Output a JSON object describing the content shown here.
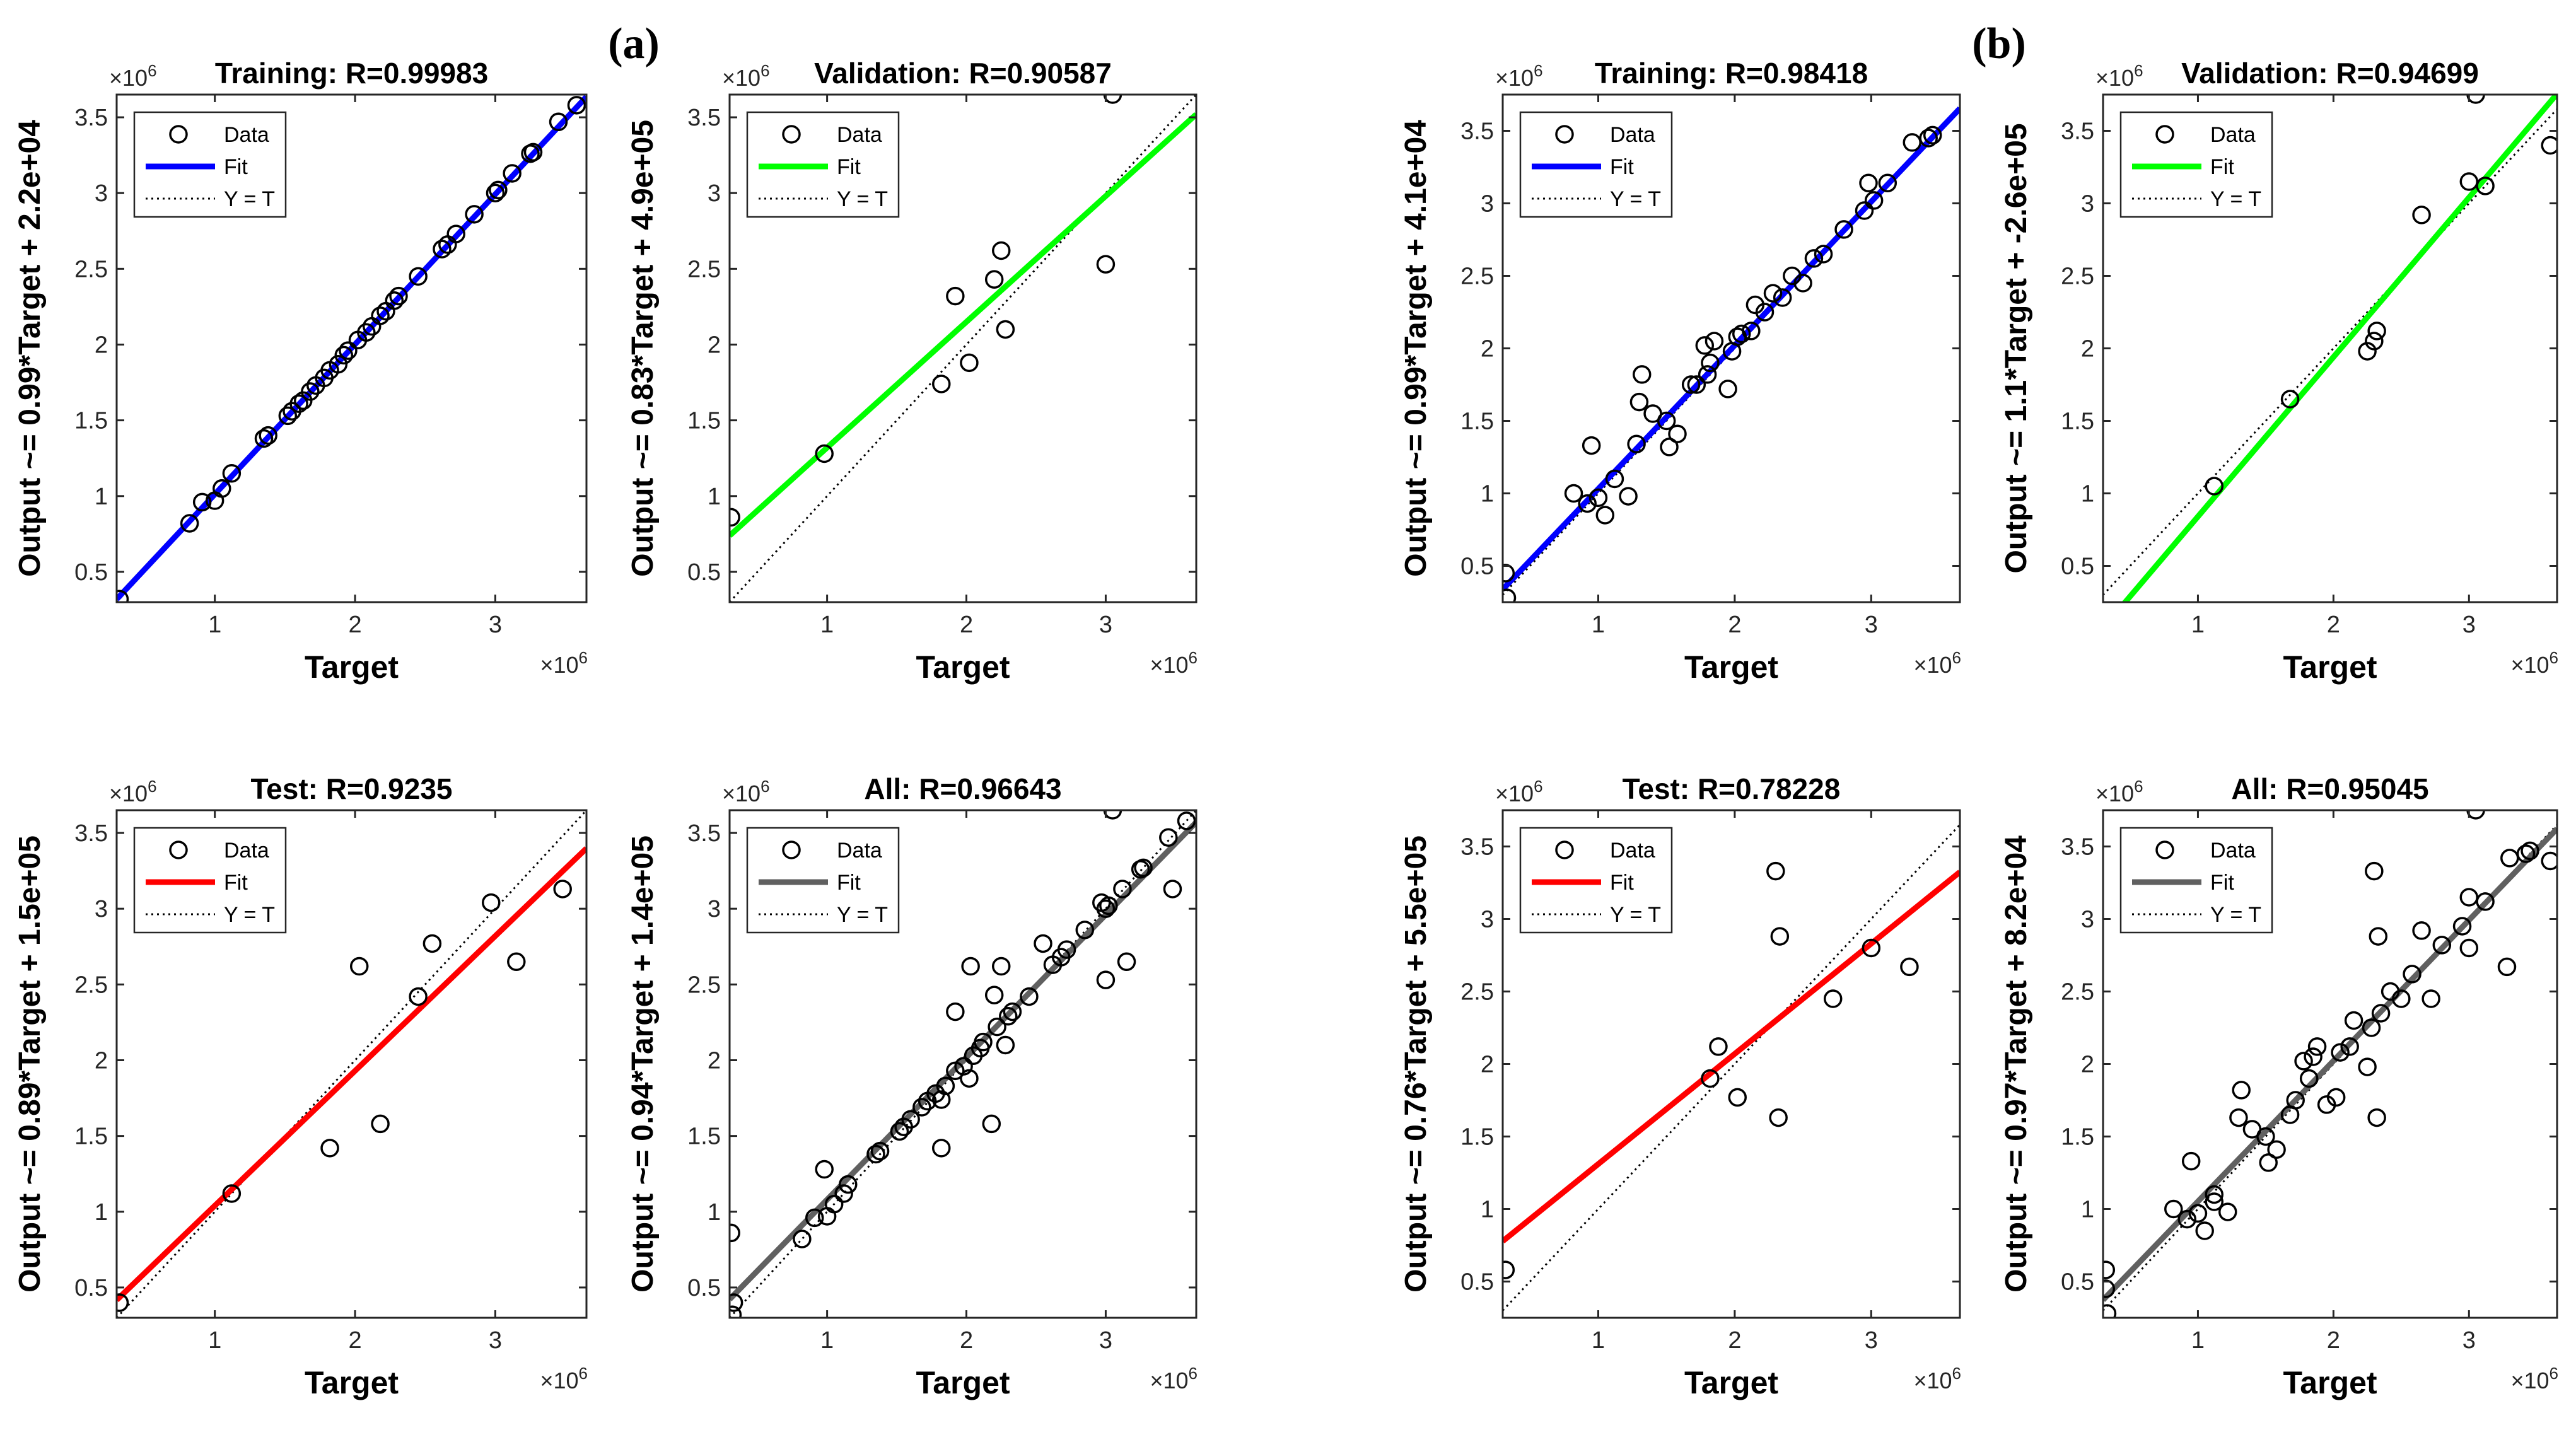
{
  "figure": {
    "groups": [
      {
        "label": "(a)"
      },
      {
        "label": "(b)"
      }
    ]
  },
  "colors": {
    "training": "#0000ff",
    "validation": "#00ff00",
    "test": "#ff0000",
    "all": "#606060",
    "axis": "#262626",
    "ideal": "#000000"
  },
  "chart_data": [
    {
      "type": "scatter",
      "group": "(a)",
      "title": "Training: R=0.99983",
      "xlabel": "Target",
      "ylabel": "Output ~= 0.99*Target + 2.2e+04",
      "exponent": "×10^6",
      "xlim": [
        0.3,
        3.65
      ],
      "ylim": [
        0.3,
        3.65
      ],
      "xticks": [
        "1",
        "2",
        "3"
      ],
      "yticks": [
        "0.5",
        "1",
        "1.5",
        "2",
        "2.5",
        "3",
        "3.5"
      ],
      "fit_color_key": "training",
      "fit": {
        "slope": 0.99,
        "intercept": 0.022
      },
      "legend": [
        "Data",
        "Fit",
        "Y = T"
      ],
      "points": [
        [
          0.32,
          0.32
        ],
        [
          0.82,
          0.82
        ],
        [
          0.91,
          0.96
        ],
        [
          1.0,
          0.97
        ],
        [
          1.05,
          1.05
        ],
        [
          1.12,
          1.15
        ],
        [
          1.35,
          1.38
        ],
        [
          1.38,
          1.4
        ],
        [
          1.52,
          1.53
        ],
        [
          1.55,
          1.56
        ],
        [
          1.6,
          1.61
        ],
        [
          1.63,
          1.63
        ],
        [
          1.68,
          1.69
        ],
        [
          1.72,
          1.73
        ],
        [
          1.78,
          1.78
        ],
        [
          1.82,
          1.83
        ],
        [
          1.88,
          1.87
        ],
        [
          1.92,
          1.93
        ],
        [
          1.95,
          1.96
        ],
        [
          2.02,
          2.03
        ],
        [
          2.08,
          2.08
        ],
        [
          2.12,
          2.12
        ],
        [
          2.18,
          2.19
        ],
        [
          2.22,
          2.22
        ],
        [
          2.28,
          2.29
        ],
        [
          2.31,
          2.32
        ],
        [
          2.45,
          2.45
        ],
        [
          2.62,
          2.63
        ],
        [
          2.66,
          2.66
        ],
        [
          2.72,
          2.73
        ],
        [
          2.85,
          2.86
        ],
        [
          3.0,
          3.0
        ],
        [
          3.02,
          3.02
        ],
        [
          3.12,
          3.13
        ],
        [
          3.25,
          3.26
        ],
        [
          3.27,
          3.27
        ],
        [
          3.45,
          3.47
        ],
        [
          3.58,
          3.58
        ]
      ]
    },
    {
      "type": "scatter",
      "group": "(a)",
      "title": "Validation: R=0.90587",
      "xlabel": "Target",
      "ylabel": "Output ~= 0.83*Target + 4.9e+05",
      "exponent": "×10^6",
      "xlim": [
        0.3,
        3.65
      ],
      "ylim": [
        0.3,
        3.65
      ],
      "xticks": [
        "1",
        "2",
        "3"
      ],
      "yticks": [
        "0.5",
        "1",
        "1.5",
        "2",
        "2.5",
        "3",
        "3.5"
      ],
      "fit_color_key": "validation",
      "fit": {
        "slope": 0.83,
        "intercept": 0.49
      },
      "legend": [
        "Data",
        "Fit",
        "Y = T"
      ],
      "points": [
        [
          0.31,
          0.86
        ],
        [
          0.98,
          1.28
        ],
        [
          1.82,
          1.74
        ],
        [
          1.92,
          2.32
        ],
        [
          2.02,
          1.88
        ],
        [
          2.2,
          2.43
        ],
        [
          2.25,
          2.62
        ],
        [
          2.28,
          2.1
        ],
        [
          3.0,
          2.53
        ],
        [
          3.05,
          3.65
        ]
      ]
    },
    {
      "type": "scatter",
      "group": "(b)",
      "title": "Training: R=0.98418",
      "xlabel": "Target",
      "ylabel": "Output ~= 0.99*Target + 4.1e+04",
      "exponent": "×10^6",
      "xlim": [
        0.3,
        3.65
      ],
      "ylim": [
        0.25,
        3.75
      ],
      "xticks": [
        "1",
        "2",
        "3"
      ],
      "yticks": [
        "0.5",
        "1",
        "1.5",
        "2",
        "2.5",
        "3",
        "3.5"
      ],
      "fit_color_key": "training",
      "fit": {
        "slope": 0.99,
        "intercept": 0.041
      },
      "legend": [
        "Data",
        "Fit",
        "Y = T"
      ],
      "points": [
        [
          0.32,
          0.45
        ],
        [
          0.33,
          0.28
        ],
        [
          0.82,
          1.0
        ],
        [
          0.92,
          0.93
        ],
        [
          0.95,
          1.33
        ],
        [
          1.0,
          0.97
        ],
        [
          1.05,
          0.85
        ],
        [
          1.12,
          1.1
        ],
        [
          1.22,
          0.98
        ],
        [
          1.28,
          1.34
        ],
        [
          1.3,
          1.63
        ],
        [
          1.32,
          1.82
        ],
        [
          1.4,
          1.55
        ],
        [
          1.5,
          1.5
        ],
        [
          1.52,
          1.32
        ],
        [
          1.58,
          1.41
        ],
        [
          1.68,
          1.75
        ],
        [
          1.72,
          1.75
        ],
        [
          1.78,
          2.02
        ],
        [
          1.8,
          1.82
        ],
        [
          1.82,
          1.9
        ],
        [
          1.85,
          2.05
        ],
        [
          1.95,
          1.72
        ],
        [
          1.98,
          1.98
        ],
        [
          2.02,
          2.08
        ],
        [
          2.05,
          2.1
        ],
        [
          2.12,
          2.12
        ],
        [
          2.15,
          2.3
        ],
        [
          2.22,
          2.25
        ],
        [
          2.28,
          2.38
        ],
        [
          2.35,
          2.35
        ],
        [
          2.42,
          2.5
        ],
        [
          2.5,
          2.45
        ],
        [
          2.58,
          2.62
        ],
        [
          2.65,
          2.65
        ],
        [
          2.8,
          2.82
        ],
        [
          2.95,
          2.95
        ],
        [
          2.98,
          3.14
        ],
        [
          3.02,
          3.02
        ],
        [
          3.12,
          3.14
        ],
        [
          3.3,
          3.42
        ],
        [
          3.42,
          3.45
        ],
        [
          3.45,
          3.47
        ]
      ]
    },
    {
      "type": "scatter",
      "group": "(b)",
      "title": "Validation: R=0.94699",
      "xlabel": "Target",
      "ylabel": "Output ~= 1.1*Target + -2.6e+05",
      "exponent": "×10^6",
      "xlim": [
        0.3,
        3.65
      ],
      "ylim": [
        0.25,
        3.75
      ],
      "xticks": [
        "1",
        "2",
        "3"
      ],
      "yticks": [
        "0.5",
        "1",
        "1.5",
        "2",
        "2.5",
        "3",
        "3.5"
      ],
      "fit_color_key": "validation",
      "fit": {
        "slope": 1.1,
        "intercept": -0.26
      },
      "legend": [
        "Data",
        "Fit",
        "Y = T"
      ],
      "points": [
        [
          1.12,
          1.05
        ],
        [
          1.68,
          1.65
        ],
        [
          2.25,
          1.98
        ],
        [
          2.3,
          2.05
        ],
        [
          2.32,
          2.12
        ],
        [
          2.65,
          2.92
        ],
        [
          3.0,
          3.15
        ],
        [
          3.05,
          3.75
        ],
        [
          3.12,
          3.12
        ],
        [
          3.6,
          3.4
        ]
      ]
    },
    {
      "type": "scatter",
      "group": "(a)",
      "title": "Test: R=0.9235",
      "xlabel": "Target",
      "ylabel": "Output ~= 0.89*Target + 1.5e+05",
      "exponent": "×10^6",
      "xlim": [
        0.3,
        3.65
      ],
      "ylim": [
        0.3,
        3.65
      ],
      "xticks": [
        "1",
        "2",
        "3"
      ],
      "yticks": [
        "0.5",
        "1",
        "1.5",
        "2",
        "2.5",
        "3",
        "3.5"
      ],
      "fit_color_key": "test",
      "fit": {
        "slope": 0.89,
        "intercept": 0.15
      },
      "legend": [
        "Data",
        "Fit",
        "Y = T"
      ],
      "points": [
        [
          0.32,
          0.4
        ],
        [
          1.12,
          1.12
        ],
        [
          1.82,
          1.42
        ],
        [
          2.03,
          2.62
        ],
        [
          2.18,
          1.58
        ],
        [
          2.45,
          2.42
        ],
        [
          2.55,
          2.77
        ],
        [
          2.97,
          3.04
        ],
        [
          3.15,
          2.65
        ],
        [
          3.48,
          3.13
        ]
      ]
    },
    {
      "type": "scatter",
      "group": "(a)",
      "title": "All: R=0.96643",
      "xlabel": "Target",
      "ylabel": "Output ~= 0.94*Target + 1.4e+05",
      "exponent": "×10^6",
      "xlim": [
        0.3,
        3.65
      ],
      "ylim": [
        0.3,
        3.65
      ],
      "xticks": [
        "1",
        "2",
        "3"
      ],
      "yticks": [
        "0.5",
        "1",
        "1.5",
        "2",
        "2.5",
        "3",
        "3.5"
      ],
      "fit_color_key": "all",
      "fit": {
        "slope": 0.94,
        "intercept": 0.14
      },
      "legend": [
        "Data",
        "Fit",
        "Y = T"
      ],
      "points": [
        [
          0.31,
          0.86
        ],
        [
          0.32,
          0.32
        ],
        [
          0.33,
          0.4
        ],
        [
          0.82,
          0.82
        ],
        [
          0.91,
          0.96
        ],
        [
          0.98,
          1.28
        ],
        [
          1.0,
          0.97
        ],
        [
          1.05,
          1.05
        ],
        [
          1.12,
          1.12
        ],
        [
          1.15,
          1.18
        ],
        [
          1.35,
          1.38
        ],
        [
          1.38,
          1.4
        ],
        [
          1.52,
          1.53
        ],
        [
          1.55,
          1.56
        ],
        [
          1.6,
          1.61
        ],
        [
          1.68,
          1.69
        ],
        [
          1.72,
          1.73
        ],
        [
          1.78,
          1.78
        ],
        [
          1.82,
          1.42
        ],
        [
          1.82,
          1.74
        ],
        [
          1.85,
          1.83
        ],
        [
          1.92,
          2.32
        ],
        [
          1.92,
          1.93
        ],
        [
          1.98,
          1.96
        ],
        [
          2.02,
          1.88
        ],
        [
          2.03,
          2.62
        ],
        [
          2.05,
          2.03
        ],
        [
          2.1,
          2.08
        ],
        [
          2.12,
          2.12
        ],
        [
          2.18,
          1.58
        ],
        [
          2.2,
          2.43
        ],
        [
          2.22,
          2.22
        ],
        [
          2.25,
          2.62
        ],
        [
          2.28,
          2.1
        ],
        [
          2.3,
          2.29
        ],
        [
          2.33,
          2.32
        ],
        [
          2.45,
          2.42
        ],
        [
          2.55,
          2.77
        ],
        [
          2.62,
          2.63
        ],
        [
          2.68,
          2.68
        ],
        [
          2.72,
          2.73
        ],
        [
          2.85,
          2.86
        ],
        [
          2.97,
          3.04
        ],
        [
          3.0,
          2.53
        ],
        [
          3.0,
          3.0
        ],
        [
          3.02,
          3.02
        ],
        [
          3.05,
          3.65
        ],
        [
          3.12,
          3.13
        ],
        [
          3.15,
          2.65
        ],
        [
          3.25,
          3.26
        ],
        [
          3.27,
          3.27
        ],
        [
          3.45,
          3.47
        ],
        [
          3.48,
          3.13
        ],
        [
          3.58,
          3.58
        ]
      ]
    },
    {
      "type": "scatter",
      "group": "(b)",
      "title": "Test: R=0.78228",
      "xlabel": "Target",
      "ylabel": "Output ~= 0.76*Target + 5.5e+05",
      "exponent": "×10^6",
      "xlim": [
        0.3,
        3.65
      ],
      "ylim": [
        0.25,
        3.75
      ],
      "xticks": [
        "1",
        "2",
        "3"
      ],
      "yticks": [
        "0.5",
        "1",
        "1.5",
        "2",
        "2.5",
        "3",
        "3.5"
      ],
      "fit_color_key": "test",
      "fit": {
        "slope": 0.76,
        "intercept": 0.55
      },
      "legend": [
        "Data",
        "Fit",
        "Y = T"
      ],
      "points": [
        [
          0.32,
          0.58
        ],
        [
          1.82,
          1.9
        ],
        [
          1.88,
          2.12
        ],
        [
          2.02,
          1.77
        ],
        [
          2.3,
          3.33
        ],
        [
          2.32,
          1.63
        ],
        [
          2.33,
          2.88
        ],
        [
          2.72,
          2.45
        ],
        [
          3.0,
          2.8
        ],
        [
          3.28,
          2.67
        ]
      ]
    },
    {
      "type": "scatter",
      "group": "(b)",
      "title": "All: R=0.95045",
      "xlabel": "Target",
      "ylabel": "Output ~= 0.97*Target + 8.2e+04",
      "exponent": "×10^6",
      "xlim": [
        0.3,
        3.65
      ],
      "ylim": [
        0.25,
        3.75
      ],
      "xticks": [
        "1",
        "2",
        "3"
      ],
      "yticks": [
        "0.5",
        "1",
        "1.5",
        "2",
        "2.5",
        "3",
        "3.5"
      ],
      "fit_color_key": "all",
      "fit": {
        "slope": 0.97,
        "intercept": 0.082
      },
      "legend": [
        "Data",
        "Fit",
        "Y = T"
      ],
      "points": [
        [
          0.32,
          0.58
        ],
        [
          0.32,
          0.45
        ],
        [
          0.33,
          0.28
        ],
        [
          0.82,
          1.0
        ],
        [
          0.92,
          0.93
        ],
        [
          0.95,
          1.33
        ],
        [
          1.0,
          0.97
        ],
        [
          1.05,
          0.85
        ],
        [
          1.12,
          1.05
        ],
        [
          1.12,
          1.1
        ],
        [
          1.22,
          0.98
        ],
        [
          1.3,
          1.63
        ],
        [
          1.32,
          1.82
        ],
        [
          1.4,
          1.55
        ],
        [
          1.5,
          1.5
        ],
        [
          1.52,
          1.32
        ],
        [
          1.58,
          1.41
        ],
        [
          1.68,
          1.65
        ],
        [
          1.72,
          1.75
        ],
        [
          1.78,
          2.02
        ],
        [
          1.82,
          1.9
        ],
        [
          1.85,
          2.05
        ],
        [
          1.88,
          2.12
        ],
        [
          1.95,
          1.72
        ],
        [
          2.02,
          1.77
        ],
        [
          2.05,
          2.08
        ],
        [
          2.12,
          2.12
        ],
        [
          2.15,
          2.3
        ],
        [
          2.25,
          1.98
        ],
        [
          2.28,
          2.25
        ],
        [
          2.3,
          3.33
        ],
        [
          2.32,
          1.63
        ],
        [
          2.33,
          2.88
        ],
        [
          2.35,
          2.35
        ],
        [
          2.42,
          2.5
        ],
        [
          2.5,
          2.45
        ],
        [
          2.58,
          2.62
        ],
        [
          2.65,
          2.92
        ],
        [
          2.72,
          2.45
        ],
        [
          2.8,
          2.82
        ],
        [
          2.95,
          2.95
        ],
        [
          3.0,
          2.8
        ],
        [
          3.0,
          3.15
        ],
        [
          3.05,
          3.75
        ],
        [
          3.12,
          3.12
        ],
        [
          3.28,
          2.67
        ],
        [
          3.3,
          3.42
        ],
        [
          3.42,
          3.45
        ],
        [
          3.45,
          3.47
        ],
        [
          3.6,
          3.4
        ]
      ]
    }
  ]
}
